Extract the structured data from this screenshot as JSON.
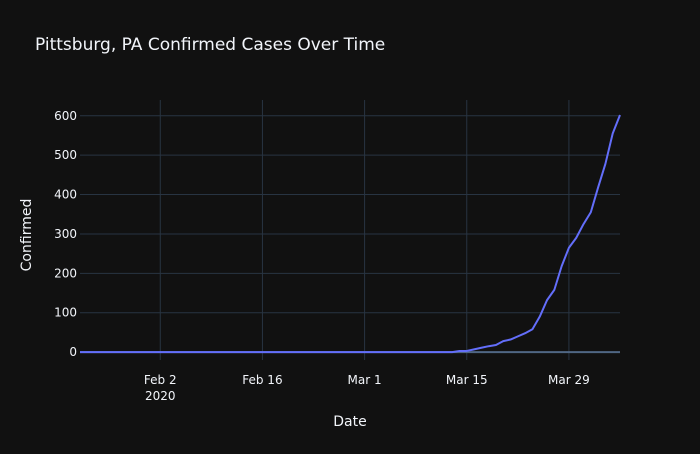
{
  "theme": {
    "background": "#111111",
    "grid": "#283442",
    "zero_line": "#506784",
    "text": "#f2f5fa",
    "line": "#636efa"
  },
  "chart_data": {
    "type": "line",
    "title": "Pittsburg, PA Confirmed Cases Over Time",
    "xlabel": "Date",
    "ylabel": "Confirmed",
    "xlim": [
      "2020-01-22",
      "2020-04-05"
    ],
    "ylim": [
      -20,
      640
    ],
    "grid": true,
    "x_ticks": [
      {
        "date": "2020-02-02",
        "label": "Feb 2",
        "sublabel": "2020"
      },
      {
        "date": "2020-02-16",
        "label": "Feb 16",
        "sublabel": ""
      },
      {
        "date": "2020-03-01",
        "label": "Mar 1",
        "sublabel": ""
      },
      {
        "date": "2020-03-15",
        "label": "Mar 15",
        "sublabel": ""
      },
      {
        "date": "2020-03-29",
        "label": "Mar 29",
        "sublabel": ""
      }
    ],
    "y_ticks": [
      0,
      100,
      200,
      300,
      400,
      500,
      600
    ],
    "series": [
      {
        "x": [
          "2020-01-22",
          "2020-03-13",
          "2020-03-14",
          "2020-03-15",
          "2020-03-16",
          "2020-03-17",
          "2020-03-18",
          "2020-03-19",
          "2020-03-20",
          "2020-03-21",
          "2020-03-22",
          "2020-03-23",
          "2020-03-24",
          "2020-03-25",
          "2020-03-26",
          "2020-03-27",
          "2020-03-28",
          "2020-03-29",
          "2020-03-30",
          "2020-03-31",
          "2020-04-01",
          "2020-04-02",
          "2020-04-03",
          "2020-04-04",
          "2020-04-05"
        ],
        "y": [
          0,
          0,
          3,
          3,
          7,
          11,
          15,
          18,
          28,
          32,
          40,
          48,
          58,
          90,
          132,
          158,
          218,
          265,
          290,
          325,
          355,
          418,
          478,
          555,
          602
        ]
      }
    ]
  }
}
